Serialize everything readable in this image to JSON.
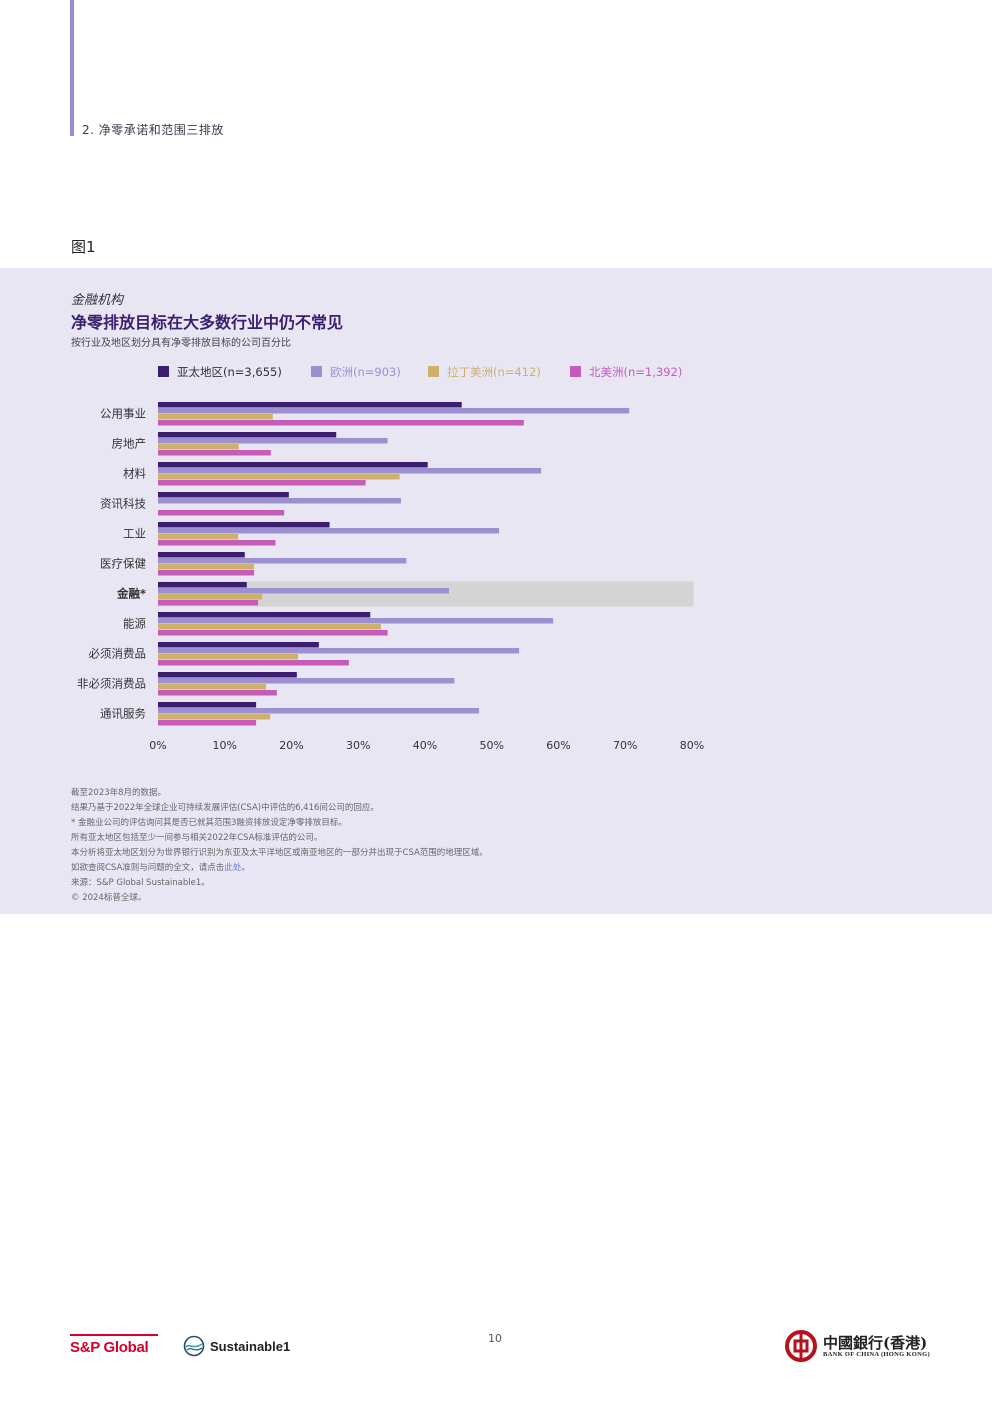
{
  "header": {
    "section": "2. 净零承诺和范围三排放"
  },
  "figure_label": "图1",
  "chart_kicker": "金融机构",
  "chart_title": "净零排放目标在大多数行业中仍不常见",
  "chart_subtitle": "按行业及地区划分具有净零排放目标的公司百分比",
  "colors": {
    "panel": "#e9e6f4",
    "highlight": "#d4d4d4",
    "brand_red": "#d6002a",
    "boc_red": "#b5121b"
  },
  "chart_data": {
    "type": "bar",
    "orientation": "horizontal",
    "categories": [
      "公用事业",
      "房地产",
      "材料",
      "资讯科技",
      "工业",
      "医疗保健",
      "金融*",
      "能源",
      "必须消费品",
      "非必须消费品",
      "通讯服务"
    ],
    "highlight_category": "金融*",
    "series": [
      {
        "name": "亚太地区(n=3,655)",
        "color": "#3b1f6e",
        "values": [
          45.5,
          26.7,
          40.4,
          19.6,
          25.7,
          13.0,
          13.3,
          31.8,
          24.1,
          20.8,
          14.7
        ]
      },
      {
        "name": "欧洲(n=903)",
        "color": "#9c90d0",
        "values": [
          70.6,
          34.4,
          57.4,
          36.4,
          51.1,
          37.2,
          43.6,
          59.2,
          54.1,
          44.4,
          48.1
        ]
      },
      {
        "name": "拉丁美洲(n=412)",
        "color": "#cdb06a",
        "values": [
          17.2,
          12.1,
          36.2,
          0,
          12.0,
          14.4,
          15.6,
          33.4,
          21.0,
          16.2,
          16.8
        ]
      },
      {
        "name": "北美洲(n=1,392)",
        "color": "#c65bb8",
        "values": [
          54.8,
          16.9,
          31.1,
          18.9,
          17.6,
          14.4,
          15.0,
          34.4,
          28.6,
          17.8,
          14.7
        ]
      }
    ],
    "x_ticks": [
      "0%",
      "10%",
      "20%",
      "30%",
      "40%",
      "50%",
      "60%",
      "70%",
      "80%"
    ],
    "xlim": [
      0,
      80
    ],
    "legend_position": "top",
    "grid": false
  },
  "notes": [
    "截至2023年8月的数据。",
    "结果乃基于2022年全球企业可持续发展评估(CSA)中评估的6,416间公司的回应。",
    "* 金融业公司的评估询问其是否已就其范围3融资排放设定净零排放目标。",
    "所有亚太地区包括至少一间参与相关2022年CSA标准评估的公司。",
    "本分析将亚太地区划分为世界银行识别为东亚及太平洋地区或南亚地区的一部分并出现于CSA范围的地理区域。"
  ],
  "note_link": {
    "before": "如欲查阅CSA准则与问题的全文，请点击",
    "link": "此处",
    "after": "。"
  },
  "source": "来源：S&P Global Sustainable1。",
  "copyright": "© 2024标普全球。",
  "footer": {
    "page_number": "10",
    "sp_logo": "S&P Global",
    "s1_logo": "Sustainable1",
    "boc_cn": "中國銀行(香港)",
    "boc_en": "BANK OF CHINA (HONG KONG)"
  }
}
